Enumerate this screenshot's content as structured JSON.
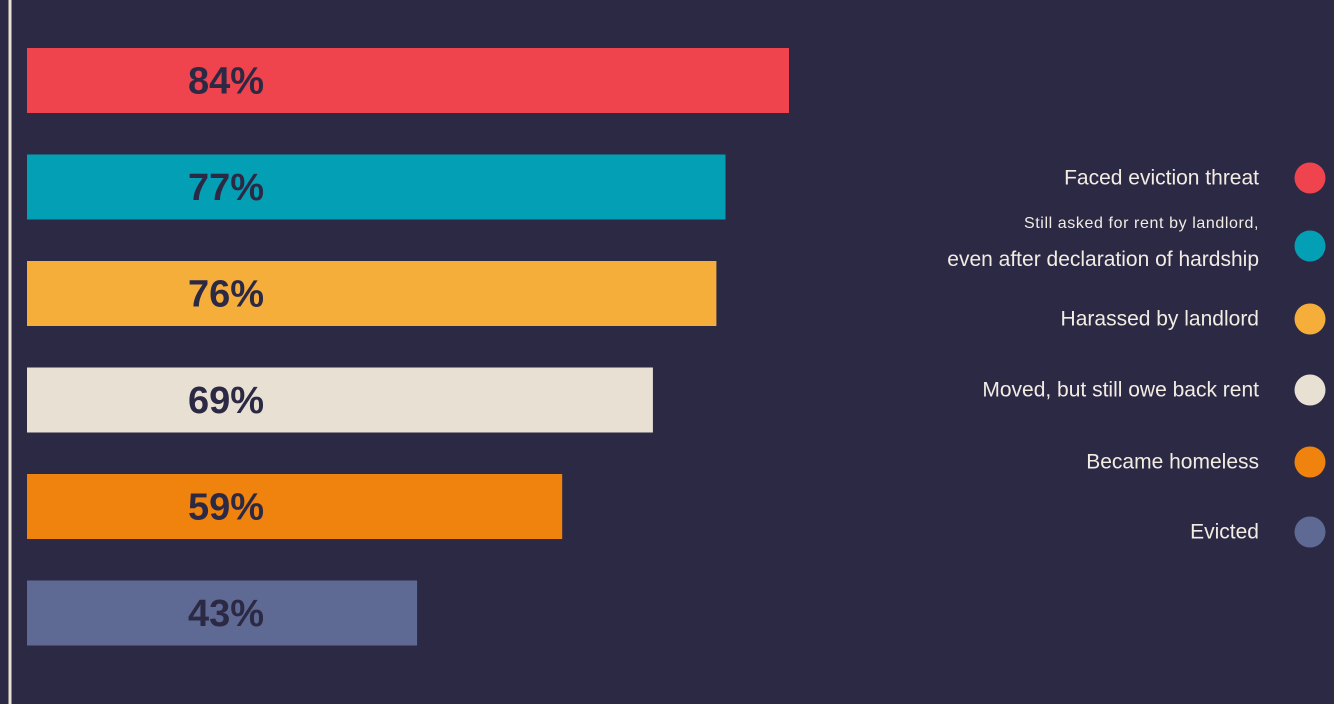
{
  "chart_data": {
    "type": "bar",
    "orientation": "horizontal",
    "categories": [
      "Faced eviction threat",
      "Still asked for rent by landlord, even after declaration of hardship",
      "Harassed  by landlord",
      "Moved, but still owe back rent",
      "Became homeless",
      "Evicted"
    ],
    "values": [
      84,
      77,
      76,
      69,
      59,
      43
    ],
    "value_labels": [
      "84%",
      "77%",
      "76%",
      "69%",
      "59%",
      "43%"
    ],
    "colors": [
      "#ef434d",
      "#039fb5",
      "#f5ae3a",
      "#e9e0d4",
      "#f0830d",
      "#5e6a94"
    ],
    "legend": {
      "position": "right",
      "entries": [
        {
          "lines": [
            "Faced eviction threat"
          ]
        },
        {
          "lines": [
            "Still asked for rent by landlord,",
            "even after declaration of hardship"
          ]
        },
        {
          "lines": [
            "Harassed  by landlord"
          ]
        },
        {
          "lines": [
            "Moved, but still owe back rent"
          ]
        },
        {
          "lines": [
            "Became homeless"
          ]
        },
        {
          "lines": [
            "Evicted"
          ]
        }
      ]
    },
    "axis_line_color": "#e9e0d4",
    "grid": false
  }
}
